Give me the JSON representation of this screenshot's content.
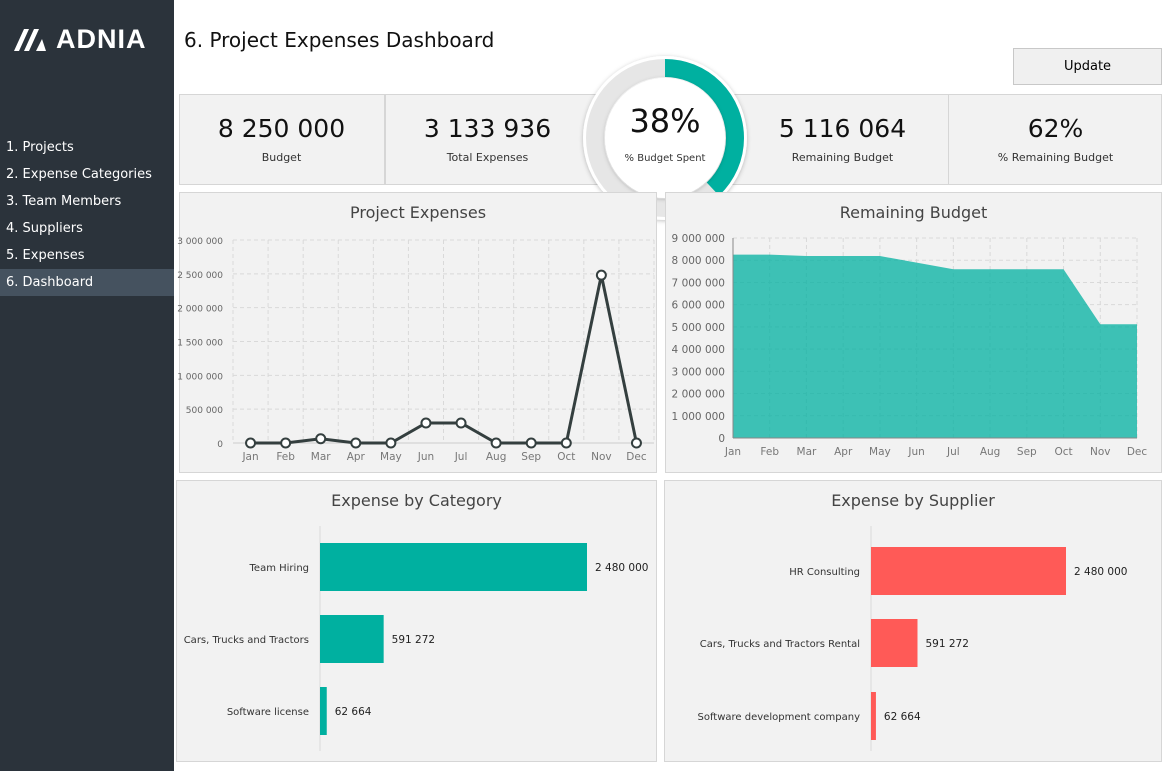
{
  "sidebar": {
    "logo": "ADNIA",
    "items": [
      {
        "label": "1. Projects"
      },
      {
        "label": "2. Expense Categories"
      },
      {
        "label": "3. Team Members"
      },
      {
        "label": "4. Suppliers"
      },
      {
        "label": "5. Expenses"
      },
      {
        "label": "6. Dashboard",
        "active": true
      }
    ]
  },
  "header": {
    "title": "6. Project Expenses Dashboard",
    "update_label": "Update"
  },
  "kpis": [
    {
      "value": "8 250 000",
      "label": "Budget"
    },
    {
      "value": "3 133 936",
      "label": "Total Expenses"
    },
    {
      "value": "5 116 064",
      "label": "Remaining Budget"
    },
    {
      "value": "62%",
      "label": "% Remaining Budget"
    }
  ],
  "donut": {
    "value": "38%",
    "label": "% Budget Spent",
    "fraction": 0.38,
    "color": "#00b0a0"
  },
  "colors": {
    "teal": "#00b0a0",
    "red": "#ff5a57",
    "line": "#343f3f"
  },
  "chart_data": [
    {
      "type": "line",
      "title": "Project Expenses",
      "categories": [
        "Jan",
        "Feb",
        "Mar",
        "Apr",
        "May",
        "Jun",
        "Jul",
        "Aug",
        "Sep",
        "Oct",
        "Nov",
        "Dec"
      ],
      "values": [
        0,
        0,
        62664,
        0,
        0,
        295636,
        295636,
        0,
        0,
        0,
        2480000,
        0
      ],
      "ylim": [
        0,
        3000000
      ],
      "yticks": [
        "0",
        "500 000",
        "1 000 000",
        "1 500 000",
        "2 000 000",
        "2 500 000",
        "3 000 000"
      ],
      "grid": true
    },
    {
      "type": "area",
      "title": "Remaining Budget",
      "categories": [
        "Jan",
        "Feb",
        "Mar",
        "Apr",
        "May",
        "Jun",
        "Jul",
        "Aug",
        "Sep",
        "Oct",
        "Nov",
        "Dec"
      ],
      "values": [
        8250000,
        8250000,
        8187336,
        8187336,
        8187336,
        7891700,
        7596064,
        7596064,
        7596064,
        7596064,
        5116064,
        5116064
      ],
      "ylim": [
        0,
        9000000
      ],
      "yticks": [
        "0",
        "1 000 000",
        "2 000 000",
        "3 000 000",
        "4 000 000",
        "5 000 000",
        "6 000 000",
        "7 000 000",
        "8 000 000",
        "9 000 000"
      ],
      "grid": true
    },
    {
      "type": "bar",
      "title": "Expense by Category",
      "categories": [
        "Team Hiring",
        "Cars, Trucks and Tractors",
        "Software license"
      ],
      "values": [
        2480000,
        591272,
        62664
      ],
      "labels": [
        "2 480 000",
        "591 272",
        "62 664"
      ]
    },
    {
      "type": "bar",
      "title": "Expense by Supplier",
      "categories": [
        "HR Consulting",
        "Cars, Trucks and Tractors Rental",
        "Software development company"
      ],
      "values": [
        2480000,
        591272,
        62664
      ],
      "labels": [
        "2 480 000",
        "591 272",
        "62 664"
      ]
    }
  ]
}
